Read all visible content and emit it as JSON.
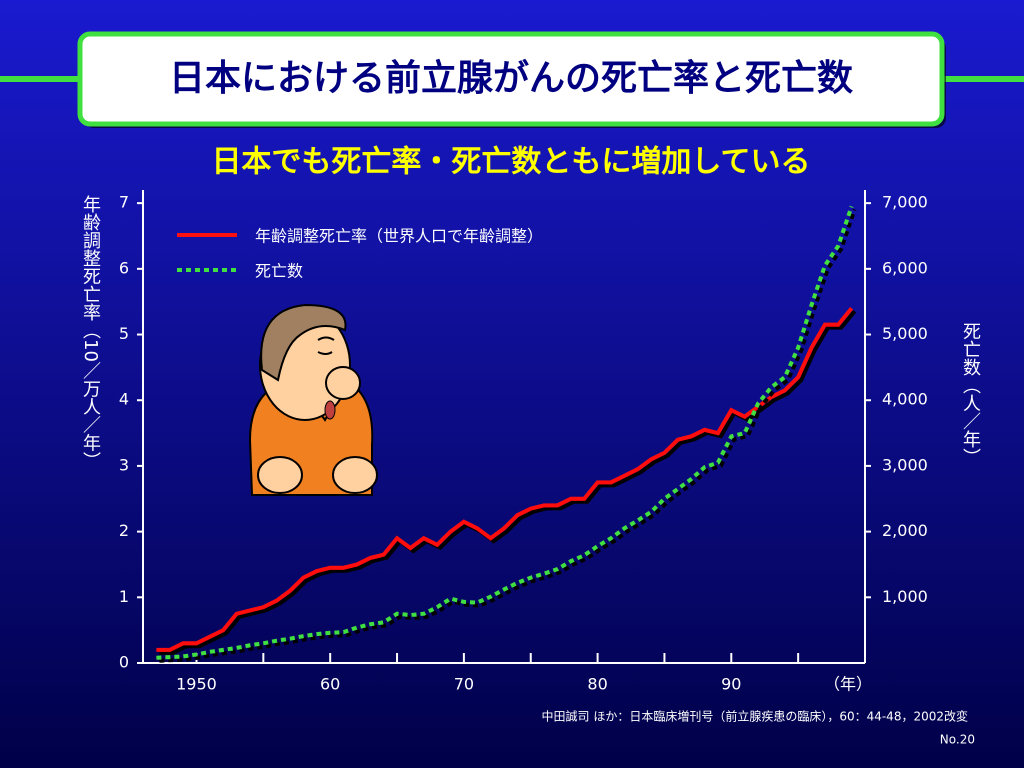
{
  "chart_data": {
    "type": "line",
    "title": "日本における前立腺がんの死亡率と死亡数",
    "subtitle": "日本でも死亡率・死亡数ともに増加している",
    "y_label": "年齢調整死亡率（10／万人／年）",
    "y2_label": "死亡数（人／年）",
    "x_label": "（年）",
    "x": [
      1947,
      1948,
      1949,
      1950,
      1951,
      1952,
      1953,
      1954,
      1955,
      1956,
      1957,
      1958,
      1959,
      1960,
      1961,
      1962,
      1963,
      1964,
      1965,
      1966,
      1967,
      1968,
      1969,
      1970,
      1971,
      1972,
      1973,
      1974,
      1975,
      1976,
      1977,
      1978,
      1979,
      1980,
      1981,
      1982,
      1983,
      1984,
      1985,
      1986,
      1987,
      1988,
      1989,
      1990,
      1991,
      1992,
      1993,
      1994,
      1995,
      1996,
      1997,
      1998,
      1999
    ],
    "series": [
      {
        "name": "年齢調整死亡率（世界人口で年齢調整）",
        "color": "#ff1010",
        "dashed": false,
        "values": [
          0.2,
          0.2,
          0.3,
          0.3,
          0.4,
          0.5,
          0.75,
          0.8,
          0.85,
          0.95,
          1.1,
          1.3,
          1.4,
          1.45,
          1.45,
          1.5,
          1.6,
          1.65,
          1.9,
          1.75,
          1.9,
          1.8,
          2.0,
          2.15,
          2.05,
          1.9,
          2.05,
          2.25,
          2.35,
          2.4,
          2.4,
          2.5,
          2.5,
          2.75,
          2.75,
          2.85,
          2.95,
          3.1,
          3.2,
          3.4,
          3.45,
          3.55,
          3.5,
          3.85,
          3.75,
          3.9,
          4.05,
          4.15,
          4.35,
          4.8,
          5.15,
          5.15,
          5.4
        ]
      },
      {
        "name": "死亡数",
        "color": "#40e040",
        "dashed": true,
        "axis": "y2",
        "values": [
          80,
          90,
          100,
          130,
          170,
          200,
          230,
          270,
          300,
          340,
          370,
          410,
          440,
          460,
          470,
          540,
          590,
          620,
          750,
          730,
          750,
          850,
          980,
          930,
          920,
          1010,
          1120,
          1220,
          1300,
          1360,
          1430,
          1550,
          1640,
          1780,
          1900,
          2050,
          2170,
          2300,
          2500,
          2650,
          2800,
          2980,
          3050,
          3450,
          3500,
          3950,
          4200,
          4350,
          4800,
          5450,
          6050,
          6350,
          6950
        ]
      }
    ],
    "xlim": [
      1946,
      2000
    ],
    "xticks": [
      1950,
      {
        "value": 1960,
        "label": "60"
      },
      {
        "value": 1970,
        "label": "70"
      },
      {
        "value": 1980,
        "label": "80"
      },
      {
        "value": 1990,
        "label": "90"
      }
    ],
    "xminor_ticks": [
      1955,
      1965,
      1975,
      1985,
      1995
    ],
    "ylim": [
      0,
      7.2
    ],
    "yticks": [
      0,
      1,
      2,
      3,
      4,
      5,
      6,
      7
    ],
    "y2lim": [
      0,
      7200
    ],
    "y2ticks": [
      {
        "value": 1000,
        "label": "1,000"
      },
      {
        "value": 2000,
        "label": "2,000"
      },
      {
        "value": 3000,
        "label": "3,000"
      },
      {
        "value": 4000,
        "label": "4,000"
      },
      {
        "value": 5000,
        "label": "5,000"
      },
      {
        "value": 6000,
        "label": "6,000"
      },
      {
        "value": 7000,
        "label": "7,000"
      }
    ],
    "source": "中田誠司 ほか：日本臨床増刊号（前立腺疾患の臨床），60：44-48，2002改変",
    "page_number": "No.20"
  }
}
